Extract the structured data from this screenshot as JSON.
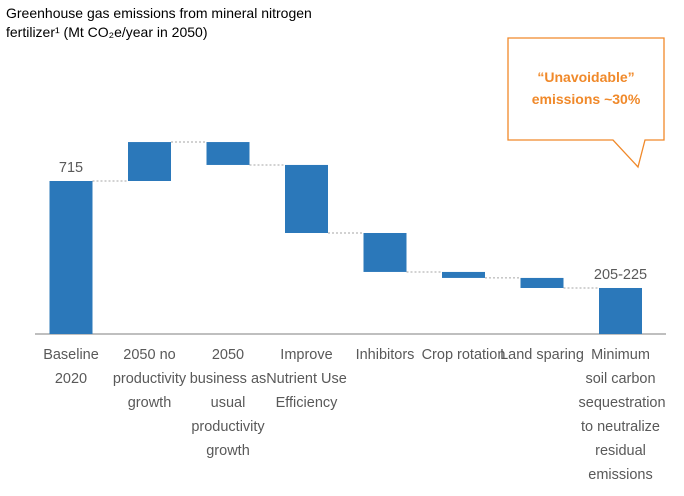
{
  "chart_data": {
    "type": "waterfall",
    "title": "Greenhouse gas emissions from mineral nitrogen fertilizer¹ (Mt CO₂e/year in 2050)",
    "annotation": "“Unavoidable” emissions ~30%",
    "categories": [
      "Baseline 2020",
      "2050 no productivity growth",
      "2050 business as usual productivity growth",
      "Improve Nutrient Use Efficiency",
      "Inhibitors",
      "Crop rotation",
      "Land sparing",
      "Minimum soil carbon sequestration to neutralize residual emissions"
    ],
    "measure": [
      "absolute",
      "relative",
      "relative",
      "relative",
      "relative",
      "relative",
      "relative",
      "total"
    ],
    "values": [
      715,
      182,
      -107,
      -318,
      -182,
      -28,
      -47,
      215
    ],
    "value_labels": [
      "715",
      null,
      null,
      null,
      null,
      null,
      null,
      "205-225"
    ],
    "color": "#2b78ba",
    "annotation_color": "#f0892a"
  }
}
